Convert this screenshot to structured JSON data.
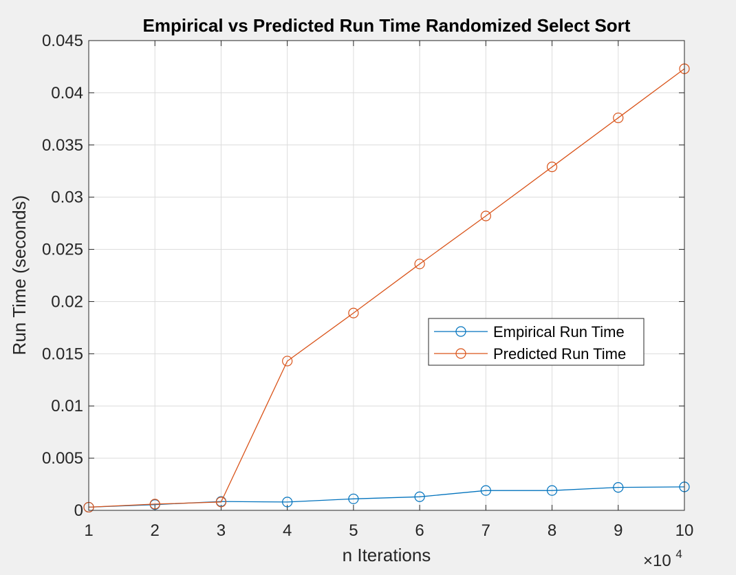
{
  "chart_data": {
    "type": "line",
    "title": "Empirical vs Predicted Run Time Randomized Select Sort",
    "xlabel": "n Iterations",
    "ylabel": "Run Time (seconds)",
    "x_exponent_label": "×10",
    "x_exponent_power": "4",
    "x": [
      10000,
      20000,
      30000,
      40000,
      50000,
      60000,
      70000,
      80000,
      90000,
      100000
    ],
    "x_tick_values": [
      10000,
      20000,
      30000,
      40000,
      50000,
      60000,
      70000,
      80000,
      90000,
      100000
    ],
    "x_tick_labels": [
      "1",
      "2",
      "3",
      "4",
      "5",
      "6",
      "7",
      "8",
      "9",
      "10"
    ],
    "y_tick_values": [
      0,
      0.005,
      0.01,
      0.015,
      0.02,
      0.025,
      0.03,
      0.035,
      0.04,
      0.045
    ],
    "y_tick_labels": [
      "0",
      "0.005",
      "0.01",
      "0.015",
      "0.02",
      "0.025",
      "0.03",
      "0.035",
      "0.04",
      "0.045"
    ],
    "xlim": [
      10000,
      100000
    ],
    "ylim": [
      0,
      0.045
    ],
    "grid": true,
    "legend_position": "east",
    "series": [
      {
        "name": "Empirical Run Time",
        "color": "#0072BD",
        "marker": "circle",
        "values": [
          0.0003,
          0.00055,
          0.00085,
          0.0008,
          0.0011,
          0.0013,
          0.0019,
          0.0019,
          0.0022,
          0.00225
        ]
      },
      {
        "name": "Predicted Run Time",
        "color": "#D95319",
        "marker": "circle",
        "values": [
          0.0003,
          0.0006,
          0.0008,
          0.0143,
          0.0189,
          0.0236,
          0.0282,
          0.0329,
          0.0376,
          0.0423
        ]
      }
    ]
  }
}
